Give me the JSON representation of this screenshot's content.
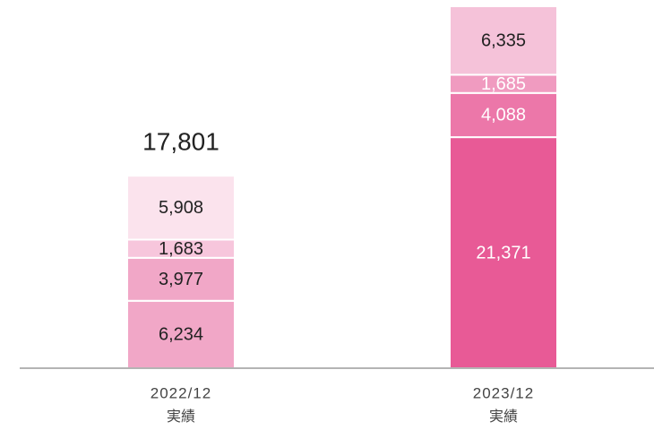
{
  "chart_data": {
    "type": "stacked_bar",
    "categories": [
      "2022/12",
      "2023/12"
    ],
    "category_sublabels": [
      "実績",
      "実績"
    ],
    "series": [
      {
        "values": [
          6234,
          21371
        ],
        "value_labels": [
          "6,234",
          "21,371"
        ],
        "colors": [
          "#f1a7c7",
          "#e85a96"
        ],
        "label_colors": [
          "#222222",
          "#ffffff"
        ]
      },
      {
        "values": [
          3977,
          4088
        ],
        "value_labels": [
          "3,977",
          "4,088"
        ],
        "colors": [
          "#f1a7c7",
          "#ec77a9"
        ],
        "label_colors": [
          "#222222",
          "#ffffff"
        ]
      },
      {
        "values": [
          1683,
          1685
        ],
        "value_labels": [
          "1,683",
          "1,685"
        ],
        "colors": [
          "#f7c6dc",
          "#f09bc0"
        ],
        "label_colors": [
          "#222222",
          "#ffffff"
        ]
      },
      {
        "values": [
          5908,
          6335
        ],
        "value_labels": [
          "5,908",
          "6,335"
        ],
        "colors": [
          "#fbe3ed",
          "#f5c2d9"
        ],
        "label_colors": [
          "#222222",
          "#222222"
        ]
      }
    ],
    "totals": [
      17801,
      null
    ],
    "total_labels": [
      "17,801",
      null
    ]
  }
}
